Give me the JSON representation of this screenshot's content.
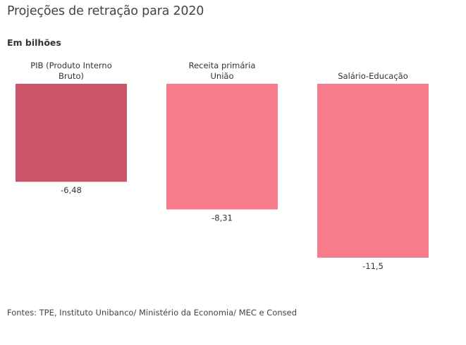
{
  "title": "Projeções de retração para 2020",
  "subtitle": "Em bilhões",
  "source": "Fontes: TPE, Instituto Unibanco/ Ministério da Economia/ MEC e Consed",
  "chart_data": {
    "type": "bar",
    "title": "Projeções de retração para 2020",
    "subtitle": "Em bilhões",
    "categories": [
      [
        "PIB (Produto Interno",
        "Bruto)"
      ],
      [
        "Receita primária",
        "União"
      ],
      [
        "Salário-Educação"
      ]
    ],
    "values": [
      -6.48,
      -8.31,
      -11.5
    ],
    "value_labels": [
      "-6,48",
      "-8,31",
      "-11,5"
    ],
    "colors": [
      "#cb5669",
      "#f67b8b",
      "#f67b8b"
    ],
    "xlabel": "",
    "ylabel": "",
    "ylim": [
      -11.5,
      0
    ],
    "grid": false,
    "legend": "none"
  }
}
